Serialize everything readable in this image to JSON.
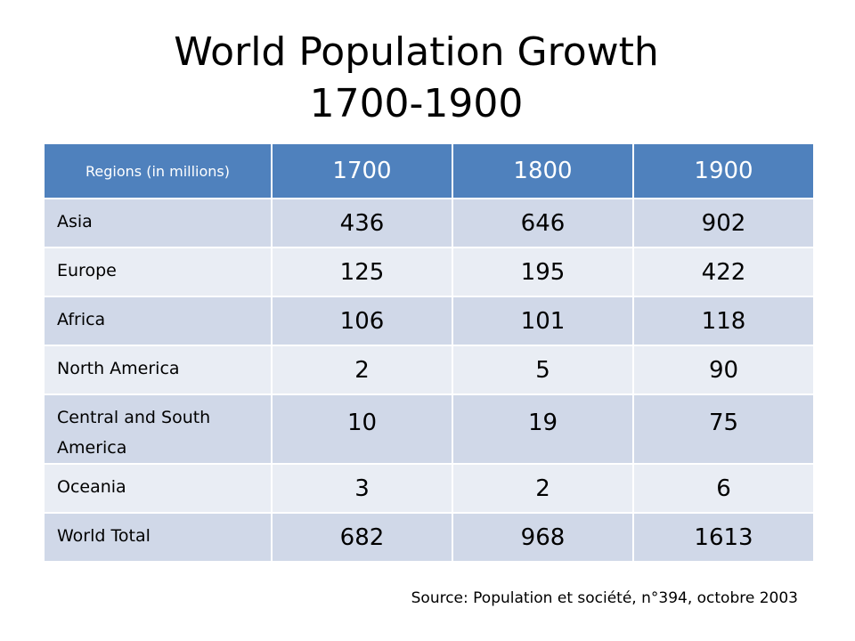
{
  "title": {
    "line1": "World Population Growth",
    "line2": "1700-1900"
  },
  "table": {
    "corner_label": "Regions (in millions)",
    "years": [
      "1700",
      "1800",
      "1900"
    ],
    "rows": [
      {
        "region": "Asia",
        "values": [
          "436",
          "646",
          "902"
        ]
      },
      {
        "region": "Europe",
        "values": [
          "125",
          "195",
          "422"
        ]
      },
      {
        "region": "Africa",
        "values": [
          "106",
          "101",
          "118"
        ]
      },
      {
        "region": "North America",
        "values": [
          "2",
          "5",
          "90"
        ]
      },
      {
        "region": "Central and South America",
        "values": [
          "10",
          "19",
          "75"
        ]
      },
      {
        "region": "Oceania",
        "values": [
          "3",
          "2",
          "6"
        ]
      },
      {
        "region": "World Total",
        "values": [
          "682",
          "968",
          "1613"
        ]
      }
    ]
  },
  "source": "Source: Population et société, n°394, octobre 2003",
  "colors": {
    "header_bg": "#4f81bd",
    "row_odd_bg": "#d0d8e8",
    "row_even_bg": "#e9edf4"
  }
}
